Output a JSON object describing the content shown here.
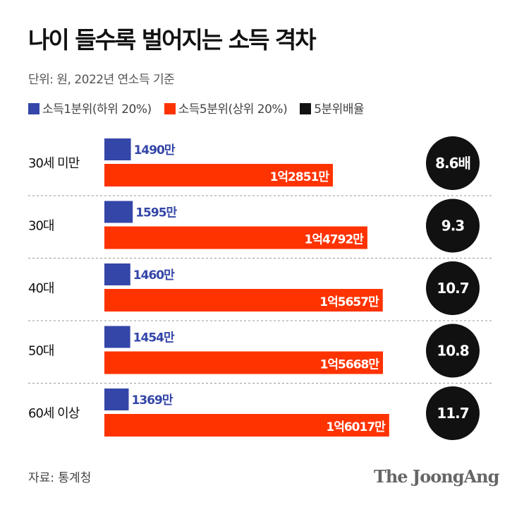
{
  "title": "나이 들수록 벌어지는 소득 격차",
  "unit_note": "단위: 원, 2022년 연소득 기준",
  "source": "자료: 통계청",
  "logo": "The JoongAng",
  "chart_data": {
    "type": "bar",
    "orientation": "horizontal",
    "unit": "만원",
    "categories": [
      "30세 미만",
      "30대",
      "40대",
      "50대",
      "60세 이상"
    ],
    "series": [
      {
        "name": "소득1분위(하위 20%)",
        "color": "#3446a8",
        "values": [
          1490,
          1595,
          1460,
          1454,
          1369
        ],
        "labels": [
          "1490만",
          "1595만",
          "1460만",
          "1454만",
          "1369만"
        ]
      },
      {
        "name": "소득5분위(상위 20%)",
        "color": "#ff3300",
        "values": [
          12851,
          14792,
          15657,
          15668,
          16017
        ],
        "labels": [
          "1억2851만",
          "1억4792만",
          "1억5657만",
          "1억5668만",
          "1억6017만"
        ]
      },
      {
        "name": "5분위배율",
        "color": "#111111",
        "values": [
          8.6,
          9.3,
          10.7,
          10.8,
          11.7
        ],
        "labels": [
          "8.6배",
          "9.3",
          "10.7",
          "10.8",
          "11.7"
        ]
      }
    ]
  }
}
